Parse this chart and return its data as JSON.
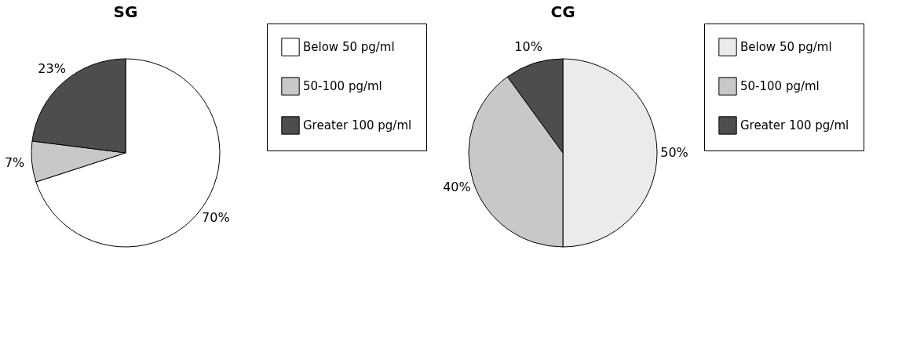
{
  "chart_data": [
    {
      "type": "pie",
      "title": "SG",
      "categories": [
        "Below 50 pg/ml",
        "50-100 pg/ml",
        "Greater 100 pg/ml"
      ],
      "values": [
        70,
        7,
        23
      ],
      "colors": [
        "#ffffff",
        "#c8c8c8",
        "#4d4d4d"
      ],
      "value_labels": [
        "70%",
        "7%",
        "23%"
      ],
      "legend": "right"
    },
    {
      "type": "pie",
      "title": "CG",
      "categories": [
        "Below 50 pg/ml",
        "50-100 pg/ml",
        "Greater 100 pg/ml"
      ],
      "values": [
        50,
        40,
        10
      ],
      "colors": [
        "#ebebeb",
        "#c8c8c8",
        "#4d4d4d"
      ],
      "value_labels": [
        "50%",
        "40%",
        "10%"
      ],
      "legend": "right"
    }
  ]
}
